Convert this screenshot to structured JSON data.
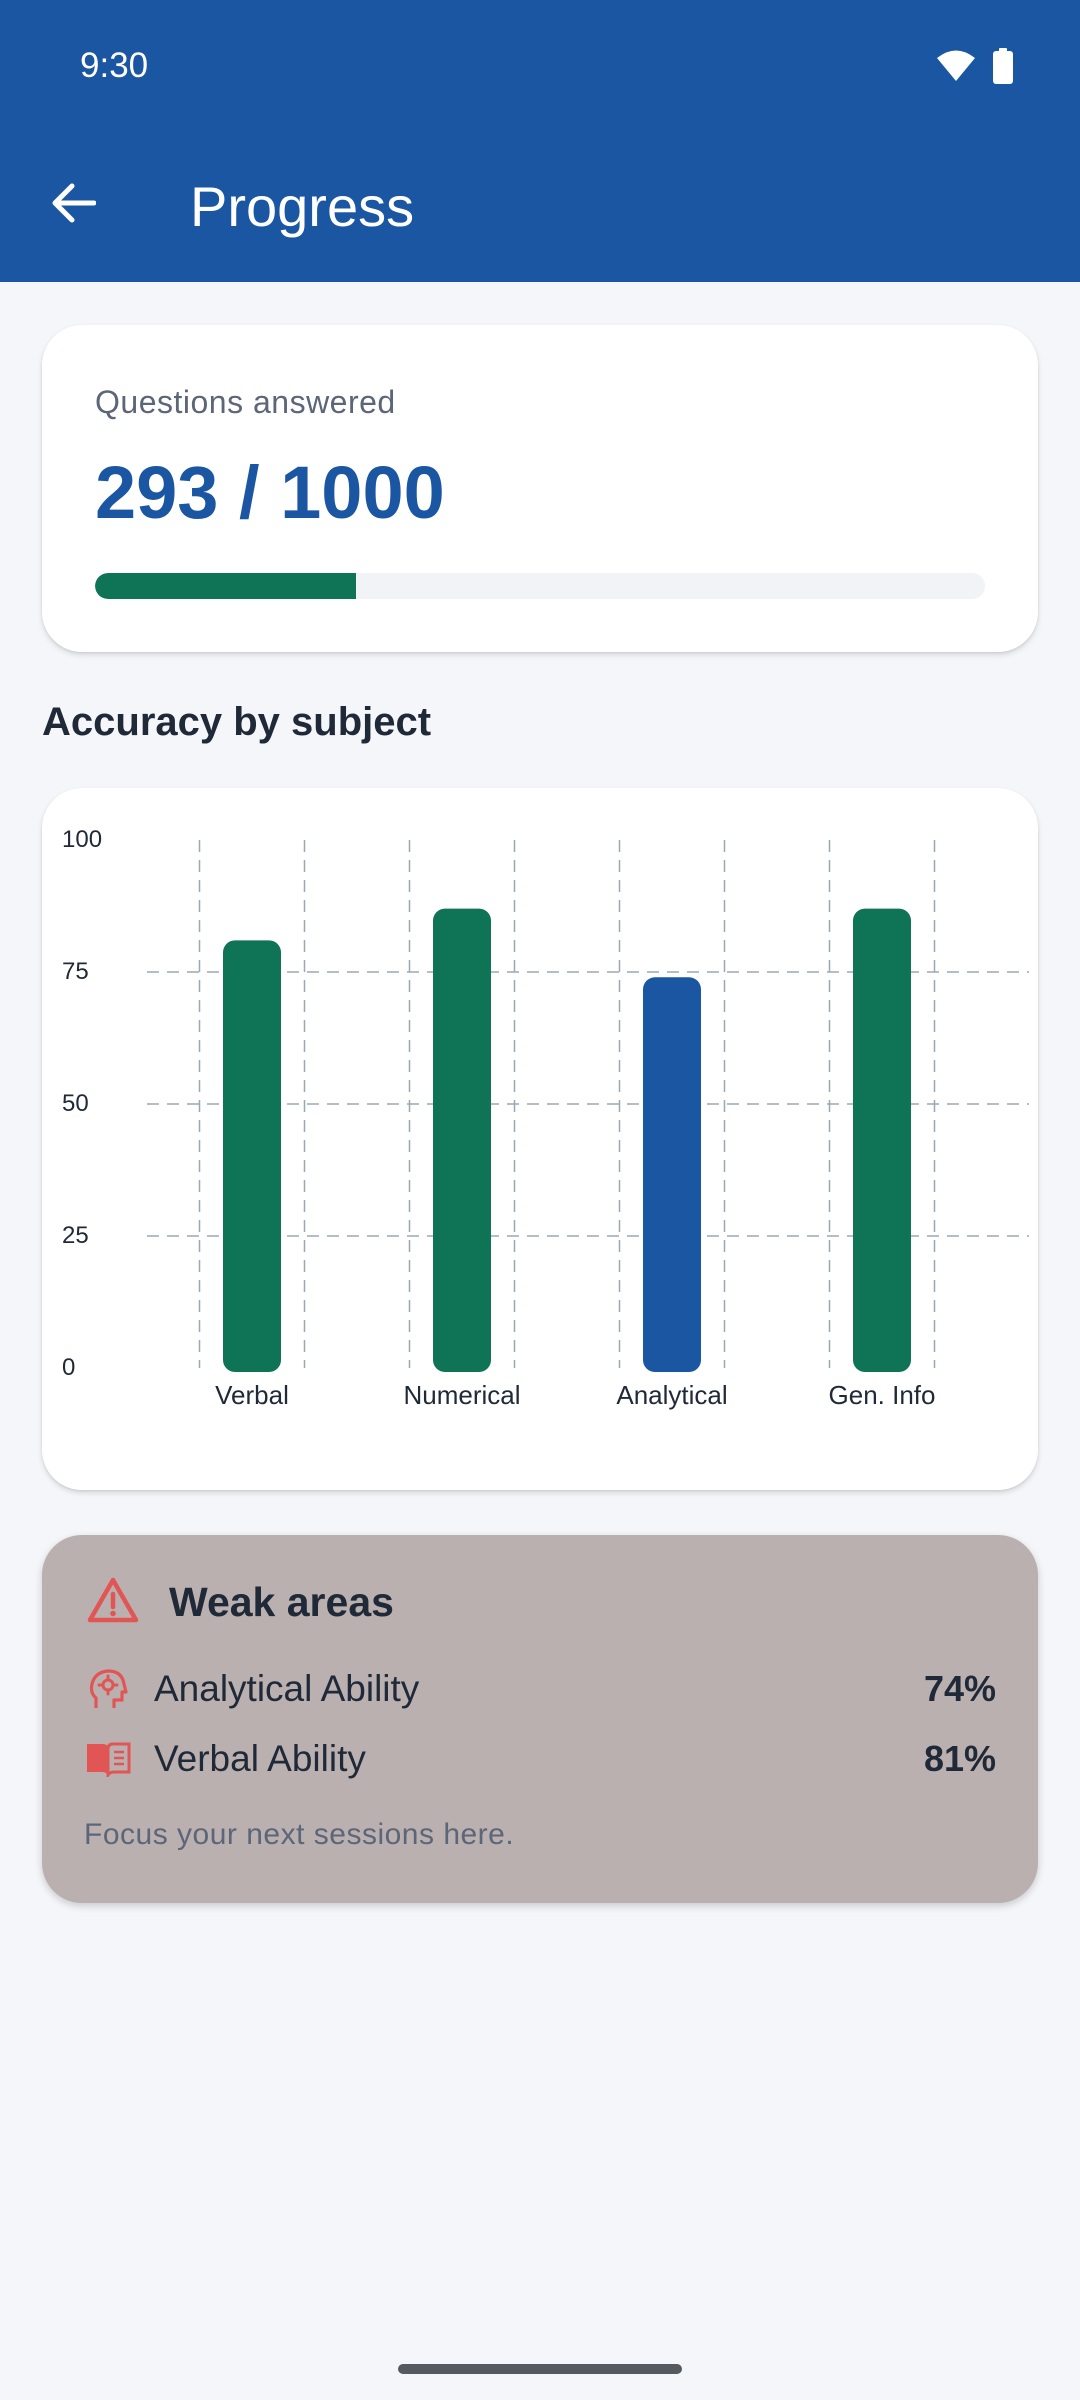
{
  "status_bar": {
    "time": "9:30"
  },
  "app_bar": {
    "title": "Progress"
  },
  "questions": {
    "label": "Questions answered",
    "value_text": "293 / 1000",
    "progress_fraction": 0.293
  },
  "accuracy_section": {
    "title": "Accuracy by subject"
  },
  "chart_data": {
    "type": "bar",
    "categories": [
      "Verbal",
      "Numerical",
      "Analytical",
      "Gen. Info"
    ],
    "values": [
      81,
      87,
      74,
      87
    ],
    "bar_colors": [
      "#0f7356",
      "#0f7356",
      "#1b56a2",
      "#0f7356"
    ],
    "ylim": [
      0,
      100
    ],
    "yticks": [
      "0",
      "25",
      "50",
      "75",
      "100"
    ],
    "grid": true,
    "title": "",
    "xlabel": "",
    "ylabel": ""
  },
  "weak_areas": {
    "title": "Weak areas",
    "items": [
      {
        "name": "Analytical Ability",
        "percent": "74%",
        "icon": "brain-gear-icon"
      },
      {
        "name": "Verbal Ability",
        "percent": "81%",
        "icon": "book-open-icon"
      }
    ],
    "note": "Focus your next sessions here."
  },
  "colors": {
    "primary": "#1b56a2",
    "success": "#0f7356",
    "warning": "#e25555",
    "weak_card_bg": "#bab0b0"
  }
}
